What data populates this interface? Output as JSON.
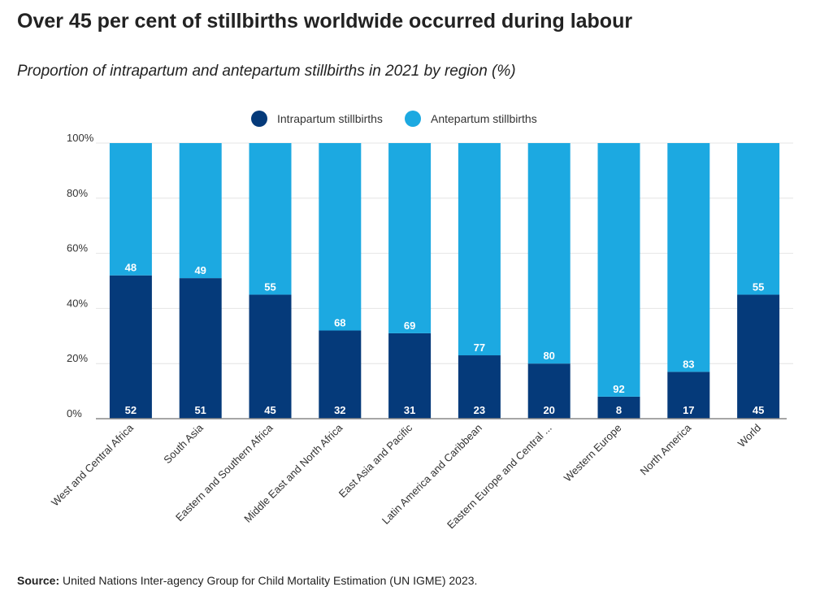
{
  "title": "Over 45 per cent of stillbirths worldwide occurred during labour",
  "subtitle": "Proportion of intrapartum and antepartum stillbirths in 2021 by region (%)",
  "source": {
    "label": "Source:",
    "text": " United Nations Inter-agency Group for Child Mortality Estimation (UN IGME) 2023."
  },
  "chart_data": {
    "type": "bar",
    "stacked": true,
    "categories": [
      "West and Central Africa",
      "South Asia",
      "Eastern and Southern Africa",
      "Middle East and North Africa",
      "East Asia and Pacific",
      "Latin America and Caribbean",
      "Eastern Europe and Central ...",
      "Western Europe",
      "North America",
      "World"
    ],
    "series": [
      {
        "name": "Intrapartum stillbirths",
        "color": "#053a7a",
        "values": [
          52,
          51,
          45,
          32,
          31,
          23,
          20,
          8,
          17,
          45
        ]
      },
      {
        "name": "Antepartum stillbirths",
        "color": "#1ca9e1",
        "values": [
          48,
          49,
          55,
          68,
          69,
          77,
          80,
          92,
          83,
          55
        ]
      }
    ],
    "y_ticks": [
      "0%",
      "20%",
      "40%",
      "60%",
      "80%",
      "100%"
    ],
    "ylim": [
      0,
      100
    ],
    "grid": true,
    "legend_position": "top-center"
  }
}
